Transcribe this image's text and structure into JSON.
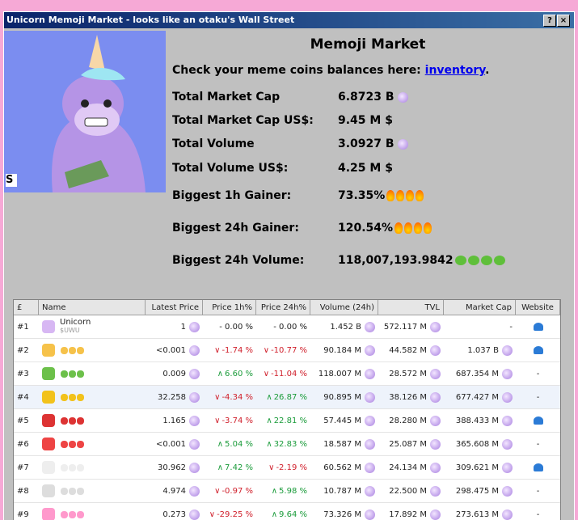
{
  "window": {
    "title": "Unicorn Memoji Market - looks like an otaku's Wall Street"
  },
  "header": {
    "title": "Memoji Market",
    "prompt": "Check your meme coins balances here:",
    "link": "inventory",
    "link_end": "."
  },
  "stats": [
    {
      "label": "Total Market Cap",
      "value": "6.8723 B"
    },
    {
      "label": "Total Market Cap US$:",
      "value": "9.45 M $"
    },
    {
      "label": "Total Volume",
      "value": "3.0927 B"
    },
    {
      "label": "Total Volume US$:",
      "value": "4.25 M $"
    },
    {
      "label": "Biggest 1h Gainer:",
      "value": "73.35%"
    },
    {
      "label": "Biggest 24h Gainer:",
      "value": "120.54%"
    },
    {
      "label": "Biggest 24h Volume:",
      "value": "118,007,193.9842"
    }
  ],
  "table": {
    "columns": [
      "£",
      "Name",
      "Latest Price",
      "Price 1h%",
      "Price 24h%",
      "Volume (24h)",
      "TVL",
      "Market Cap",
      "Website"
    ],
    "rows": [
      {
        "rank": "#1",
        "name": "Unicorn",
        "ticker": "$UWU",
        "price": "1",
        "p1h": "- 0.00 %",
        "p1h_dir": "flat",
        "p24h": "- 0.00 %",
        "p24h_dir": "flat",
        "volume": "1.452 B",
        "tvl": "572.117 M",
        "mcap": "-",
        "website": true
      },
      {
        "rank": "#2",
        "price": "<0.001",
        "p1h": "-1.74 %",
        "p1h_dir": "down",
        "p24h": "-10.77 %",
        "p24h_dir": "down",
        "volume": "90.184 M",
        "tvl": "44.582 M",
        "mcap": "1.037 B",
        "website": true
      },
      {
        "rank": "#3",
        "price": "0.009",
        "p1h": "6.60 %",
        "p1h_dir": "up",
        "p24h": "-11.04 %",
        "p24h_dir": "down",
        "volume": "118.007 M",
        "tvl": "28.572 M",
        "mcap": "687.354 M",
        "website": "-"
      },
      {
        "rank": "#4",
        "price": "32.258",
        "p1h": "-4.34 %",
        "p1h_dir": "down",
        "p24h": "26.87 %",
        "p24h_dir": "up",
        "volume": "90.895 M",
        "tvl": "38.126 M",
        "mcap": "677.427 M",
        "website": "-"
      },
      {
        "rank": "#5",
        "price": "1.165",
        "p1h": "-3.74 %",
        "p1h_dir": "down",
        "p24h": "22.81 %",
        "p24h_dir": "up",
        "volume": "57.445 M",
        "tvl": "28.280 M",
        "mcap": "388.433 M",
        "website": true
      },
      {
        "rank": "#6",
        "price": "<0.001",
        "p1h": "5.04 %",
        "p1h_dir": "up",
        "p24h": "32.83 %",
        "p24h_dir": "up",
        "volume": "18.587 M",
        "tvl": "25.087 M",
        "mcap": "365.608 M",
        "website": "-"
      },
      {
        "rank": "#7",
        "price": "30.962",
        "p1h": "7.42 %",
        "p1h_dir": "up",
        "p24h": "-2.19 %",
        "p24h_dir": "down",
        "volume": "60.562 M",
        "tvl": "24.134 M",
        "mcap": "309.621 M",
        "website": true
      },
      {
        "rank": "#8",
        "price": "4.974",
        "p1h": "-0.97 %",
        "p1h_dir": "down",
        "p24h": "5.98 %",
        "p24h_dir": "up",
        "volume": "10.787 M",
        "tvl": "22.500 M",
        "mcap": "298.475 M",
        "website": "-"
      },
      {
        "rank": "#9",
        "price": "0.273",
        "p1h": "-29.25 %",
        "p1h_dir": "down",
        "p24h": "9.64 %",
        "p24h_dir": "up",
        "volume": "73.326 M",
        "tvl": "17.892 M",
        "mcap": "273.613 M",
        "website": "-"
      }
    ]
  }
}
